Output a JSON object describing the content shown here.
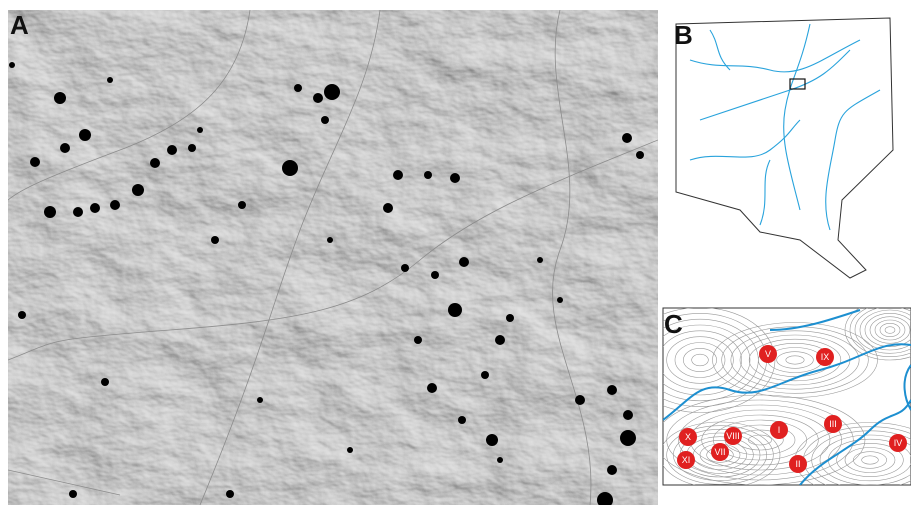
{
  "panels": [
    {
      "label": "A"
    },
    {
      "label": "B"
    },
    {
      "label": "C",
      "sites": [
        "V",
        "IX",
        "VIII",
        "I",
        "III",
        "X",
        "XI",
        "VII",
        "II",
        "IV"
      ]
    }
  ]
}
